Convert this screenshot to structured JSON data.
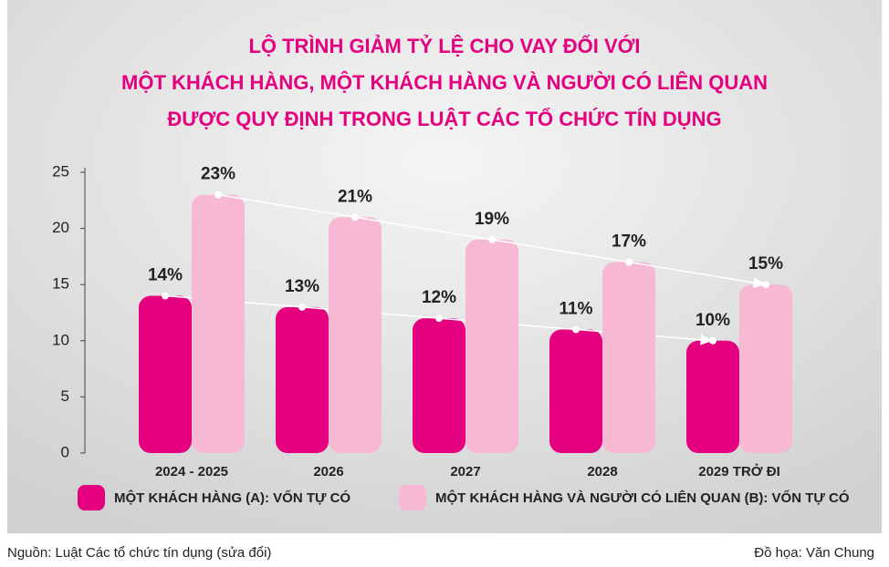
{
  "chart_data": {
    "type": "bar",
    "title": [
      "LỘ TRÌNH GIẢM TỶ LỆ CHO VAY ĐỐI VỚI",
      "MỘT KHÁCH HÀNG, MỘT KHÁCH HÀNG VÀ NGƯỜI CÓ LIÊN QUAN",
      "ĐƯỢC QUY ĐỊNH TRONG LUẬT CÁC TỔ CHỨC TÍN DỤNG"
    ],
    "categories": [
      "2024 - 2025",
      "2026",
      "2027",
      "2028",
      "2029 TRỞ ĐI"
    ],
    "series": [
      {
        "name": "MỘT KHÁCH HÀNG (A): VỐN TỰ CÓ",
        "color": "#e4007f",
        "values": [
          14,
          13,
          12,
          11,
          10
        ],
        "value_labels": [
          "14%",
          "13%",
          "12%",
          "11%",
          "10%"
        ]
      },
      {
        "name": "MỘT KHÁCH HÀNG VÀ NGƯỜI CÓ LIÊN QUAN (B): VỐN TỰ CÓ",
        "color": "#f7b8d3",
        "values": [
          23,
          21,
          19,
          17,
          15
        ],
        "value_labels": [
          "23%",
          "21%",
          "19%",
          "17%",
          "15%"
        ]
      }
    ],
    "ylim": [
      0,
      25
    ],
    "yticks": [
      0,
      5,
      10,
      15,
      20,
      25
    ],
    "source": "Nguồn: Luật Các tổ chức tín dụng (sửa đổi)",
    "credit": "Đồ họa: Văn Chung"
  }
}
